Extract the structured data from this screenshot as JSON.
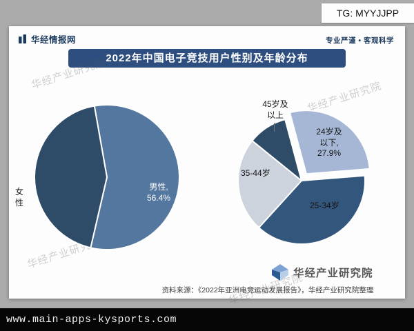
{
  "overlay": {
    "tg_label": "TG: MYYJJPP",
    "bottom_bar_url": "www.main-apps-kysports.com"
  },
  "card": {
    "brand_name": "华经情报网",
    "brand_slogan": "专业严谨 • 客观科学",
    "title": "2022年中国电子竞技用户性别及年龄分布",
    "watermark": "华经产业研究院",
    "footer_logo_text": "华经产业研究院",
    "source_note": "资料来源：《2022年亚洲电竞运动发展报告》，华经产业研究院整理"
  },
  "theme": {
    "banner_bg": "#2d4e7e",
    "brand_navy": "#1c3a5e",
    "page_bg": "#ababab",
    "bottom_bar_bg": "#060606"
  },
  "chart_data": [
    {
      "type": "pie",
      "name": "性别分布",
      "labels": [
        "男性",
        "女性"
      ],
      "values": [
        56.4,
        43.6
      ],
      "values_labeled_on_chart": [
        true,
        false
      ],
      "colors": [
        "#54779f",
        "#2e4c68"
      ],
      "data_labels": [
        "男性,\n56.4%",
        "女性"
      ]
    },
    {
      "type": "pie",
      "name": "年龄分布",
      "labels": [
        "24岁及以下",
        "25-34岁",
        "35-44岁",
        "45岁及以上"
      ],
      "values": [
        27.9,
        38.0,
        24.1,
        10.0
      ],
      "values_labeled_on_chart": [
        true,
        false,
        false,
        false
      ],
      "values_estimated_from_angles": [
        false,
        true,
        true,
        true
      ],
      "colors": [
        "#a6b7d5",
        "#33567c",
        "#cdd3dd",
        "#2e4c68"
      ],
      "data_labels": [
        "24岁及\n以下,\n27.9%",
        "25-34岁",
        "35-44岁",
        "45岁及\n以上"
      ],
      "exploded_slice": "24岁及以下"
    }
  ]
}
